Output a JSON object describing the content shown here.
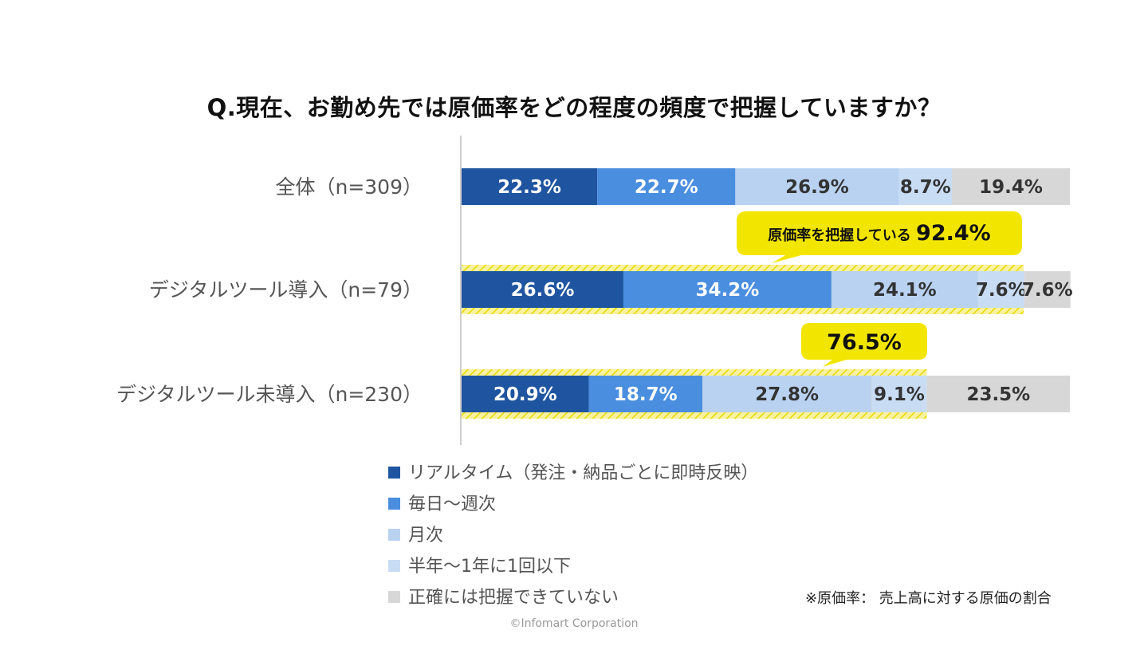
{
  "chart_data": {
    "type": "bar",
    "orientation": "horizontal",
    "stacked": "percent",
    "title": "Q.現在、お勤め先では原価率をどの程度の頻度で把握していますか？",
    "categories": [
      "全体（n=309）",
      "デジタルツール導入（n=79）",
      "デジタルツール未導入（n=230）"
    ],
    "series": [
      {
        "name": "リアルタイム（発注・納品ごとに即時反映）",
        "color": "#1f55a0",
        "label_color": "#ffffff",
        "values": [
          22.3,
          26.6,
          20.9
        ],
        "labels": [
          "22.3%",
          "26.6%",
          "20.9%"
        ]
      },
      {
        "name": "毎日～週次",
        "color": "#4a8ee0",
        "label_color": "#ffffff",
        "values": [
          22.7,
          34.2,
          18.7
        ],
        "labels": [
          "22.7%",
          "34.2%",
          "18.7%"
        ]
      },
      {
        "name": "月次",
        "color": "#b9d2f2",
        "label_color": "#333333",
        "values": [
          26.9,
          24.1,
          27.8
        ],
        "labels": [
          "26.9%",
          "24.1%",
          "27.8%"
        ]
      },
      {
        "name": "半年～1年に1回以下",
        "color": "#c8dcf4",
        "label_color": "#333333",
        "values": [
          8.7,
          7.6,
          9.1
        ],
        "labels": [
          "8.7%",
          "7.6%",
          "9.1%"
        ]
      },
      {
        "name": "正確には把握できていない",
        "color": "#d7d7d7",
        "label_color": "#333333",
        "values": [
          19.4,
          7.6,
          23.5
        ],
        "labels": [
          "19.4%",
          "7.6%",
          "23.5%"
        ]
      }
    ],
    "annotations": [
      {
        "category_index": 1,
        "label": "原価率を把握している",
        "value_label": "92.4%",
        "value": 92.4
      },
      {
        "category_index": 2,
        "label": "",
        "value_label": "76.5%",
        "value": 76.5
      }
    ],
    "legend_position": "bottom",
    "grid": false,
    "highlight_color": "#f2e600"
  },
  "note": "※原価率： 売上高に対する原価の割合",
  "copyright": "©Infomart Corporation"
}
